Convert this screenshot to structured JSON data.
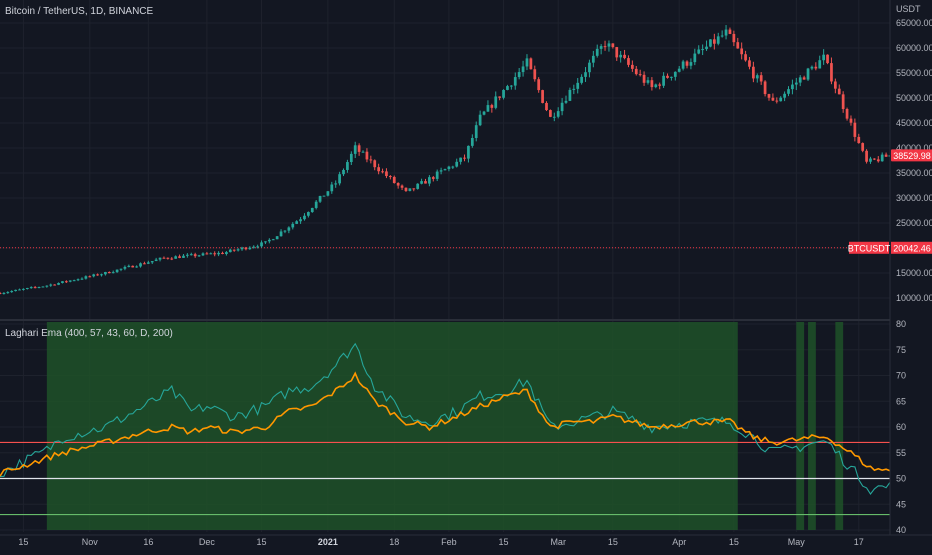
{
  "header": {
    "symbol_title": "Bitcoin / TetherUS, 1D, BINANCE"
  },
  "price_axis": {
    "currency": "USDT",
    "ticks": [
      "65000.00",
      "60000.00",
      "55000.00",
      "50000.00",
      "45000.00",
      "40000.00",
      "35000.00",
      "30000.00",
      "25000.00",
      "20000.00",
      "15000.00",
      "10000.00"
    ],
    "last_price": "38529.98",
    "last_price_color": "#f23645"
  },
  "hline": {
    "label": "BTCUSDT",
    "value": "20042.46",
    "color": "#f23645"
  },
  "indicator": {
    "title": "Laghari Ema (400, 57, 43, 60, D, 200)",
    "ticks": [
      "80",
      "75",
      "70",
      "65",
      "60",
      "55",
      "50",
      "45",
      "40"
    ],
    "level_high": 57,
    "level_mid": 50,
    "level_low": 43,
    "level_high_color": "#f6504e",
    "level_mid_color": "#e0e3eb",
    "level_low_color": "#66bb6a",
    "fast_color": "#26a69a",
    "slow_color": "#ff9800",
    "zone_color": "#1e5128"
  },
  "time_axis": {
    "labels": [
      "15",
      "Nov",
      "16",
      "Dec",
      "15",
      "2021",
      "18",
      "Feb",
      "15",
      "Mar",
      "15",
      "Apr",
      "15",
      "May",
      "17"
    ]
  },
  "colors": {
    "up": "#26a69a",
    "down": "#ef5350",
    "grid": "#1e222d",
    "bg": "#131722"
  },
  "chart_data": [
    {
      "type": "candlestick",
      "title": "Bitcoin / TetherUS, 1D, BINANCE",
      "x_range": [
        "2020-10-09",
        "2021-05-25"
      ],
      "ylim": [
        8000,
        68000
      ],
      "series": [
        {
          "x": "2020-10-09",
          "y": 11000
        },
        {
          "x": "2020-10-21",
          "y": 12500
        },
        {
          "x": "2020-11-05",
          "y": 15000
        },
        {
          "x": "2020-11-20",
          "y": 18000
        },
        {
          "x": "2020-12-05",
          "y": 19000
        },
        {
          "x": "2020-12-16",
          "y": 21000
        },
        {
          "x": "2020-12-25",
          "y": 26000
        },
        {
          "x": "2021-01-03",
          "y": 33000
        },
        {
          "x": "2021-01-08",
          "y": 40000
        },
        {
          "x": "2021-01-21",
          "y": 31000
        },
        {
          "x": "2021-02-05",
          "y": 38000
        },
        {
          "x": "2021-02-09",
          "y": 46000
        },
        {
          "x": "2021-02-21",
          "y": 57000
        },
        {
          "x": "2021-02-27",
          "y": 46000
        },
        {
          "x": "2021-03-13",
          "y": 61000
        },
        {
          "x": "2021-03-25",
          "y": 52000
        },
        {
          "x": "2021-04-13",
          "y": 63000
        },
        {
          "x": "2021-04-25",
          "y": 49000
        },
        {
          "x": "2021-05-08",
          "y": 58000
        },
        {
          "x": "2021-05-19",
          "y": 37000
        },
        {
          "x": "2021-05-25",
          "y": 38530
        }
      ]
    },
    {
      "type": "line",
      "title": "Laghari Ema (400, 57, 43, 60, D, 200)",
      "ylim": [
        40,
        80
      ],
      "series": [
        {
          "name": "",
          "points": [
            [
              "2020-10-09",
              51
            ],
            [
              "2020-10-21",
              55.5
            ],
            [
              "2020-10-25",
              58
            ],
            [
              "2020-11-05",
              60
            ],
            [
              "2020-11-15",
              64
            ],
            [
              "2020-11-22",
              67
            ],
            [
              "2020-11-27",
              63
            ],
            [
              "2020-12-01",
              64
            ],
            [
              "2020-12-08",
              62
            ],
            [
              "2020-12-16",
              64
            ],
            [
              "2020-12-22",
              67
            ],
            [
              "2020-12-28",
              68
            ],
            [
              "2021-01-03",
              72
            ],
            [
              "2021-01-08",
              76
            ],
            [
              "2021-01-13",
              68
            ],
            [
              "2021-01-21",
              62
            ],
            [
              "2021-01-27",
              61
            ],
            [
              "2021-02-03",
              63
            ],
            [
              "2021-02-09",
              66
            ],
            [
              "2021-02-16",
              67
            ],
            [
              "2021-02-21",
              69
            ],
            [
              "2021-02-27",
              60
            ],
            [
              "2021-03-05",
              61
            ],
            [
              "2021-03-10",
              62
            ],
            [
              "2021-03-15",
              63
            ],
            [
              "2021-03-25",
              60
            ],
            [
              "2021-04-05",
              61
            ],
            [
              "2021-04-14",
              61
            ],
            [
              "2021-04-20",
              58
            ],
            [
              "2021-04-25",
              55
            ],
            [
              "2021-05-01",
              56
            ],
            [
              "2021-05-06",
              57
            ],
            [
              "2021-05-09",
              57
            ],
            [
              "2021-05-15",
              52
            ],
            [
              "2021-05-20",
              48
            ],
            [
              "2021-05-25",
              48.5
            ]
          ]
        },
        {
          "name": "",
          "points": [
            [
              "2020-10-09",
              51
            ],
            [
              "2020-10-21",
              54
            ],
            [
              "2020-10-25",
              55
            ],
            [
              "2020-11-05",
              57
            ],
            [
              "2020-11-15",
              59
            ],
            [
              "2020-11-22",
              60
            ],
            [
              "2020-11-27",
              59
            ],
            [
              "2020-12-01",
              60
            ],
            [
              "2020-12-08",
              59
            ],
            [
              "2020-12-16",
              60
            ],
            [
              "2020-12-22",
              63
            ],
            [
              "2020-12-28",
              64
            ],
            [
              "2021-01-03",
              67
            ],
            [
              "2021-01-08",
              70
            ],
            [
              "2021-01-13",
              65
            ],
            [
              "2021-01-21",
              61
            ],
            [
              "2021-01-27",
              60
            ],
            [
              "2021-02-03",
              62
            ],
            [
              "2021-02-09",
              64
            ],
            [
              "2021-02-16",
              66
            ],
            [
              "2021-02-21",
              67
            ],
            [
              "2021-02-27",
              60
            ],
            [
              "2021-03-05",
              61
            ],
            [
              "2021-03-10",
              61
            ],
            [
              "2021-03-15",
              62
            ],
            [
              "2021-03-25",
              60
            ],
            [
              "2021-04-05",
              61
            ],
            [
              "2021-04-14",
              61
            ],
            [
              "2021-04-20",
              58
            ],
            [
              "2021-04-25",
              57
            ],
            [
              "2021-05-01",
              57.5
            ],
            [
              "2021-05-06",
              58
            ],
            [
              "2021-05-09",
              58
            ],
            [
              "2021-05-15",
              55
            ],
            [
              "2021-05-20",
              52
            ],
            [
              "2021-05-25",
              51.5
            ]
          ]
        }
      ],
      "zones": [
        [
          "2020-10-21",
          "2021-04-16"
        ],
        [
          "2021-05-01",
          "2021-05-03"
        ],
        [
          "2021-05-04",
          "2021-05-06"
        ],
        [
          "2021-05-11",
          "2021-05-13"
        ]
      ],
      "hlines": [
        57,
        50,
        43
      ]
    }
  ]
}
